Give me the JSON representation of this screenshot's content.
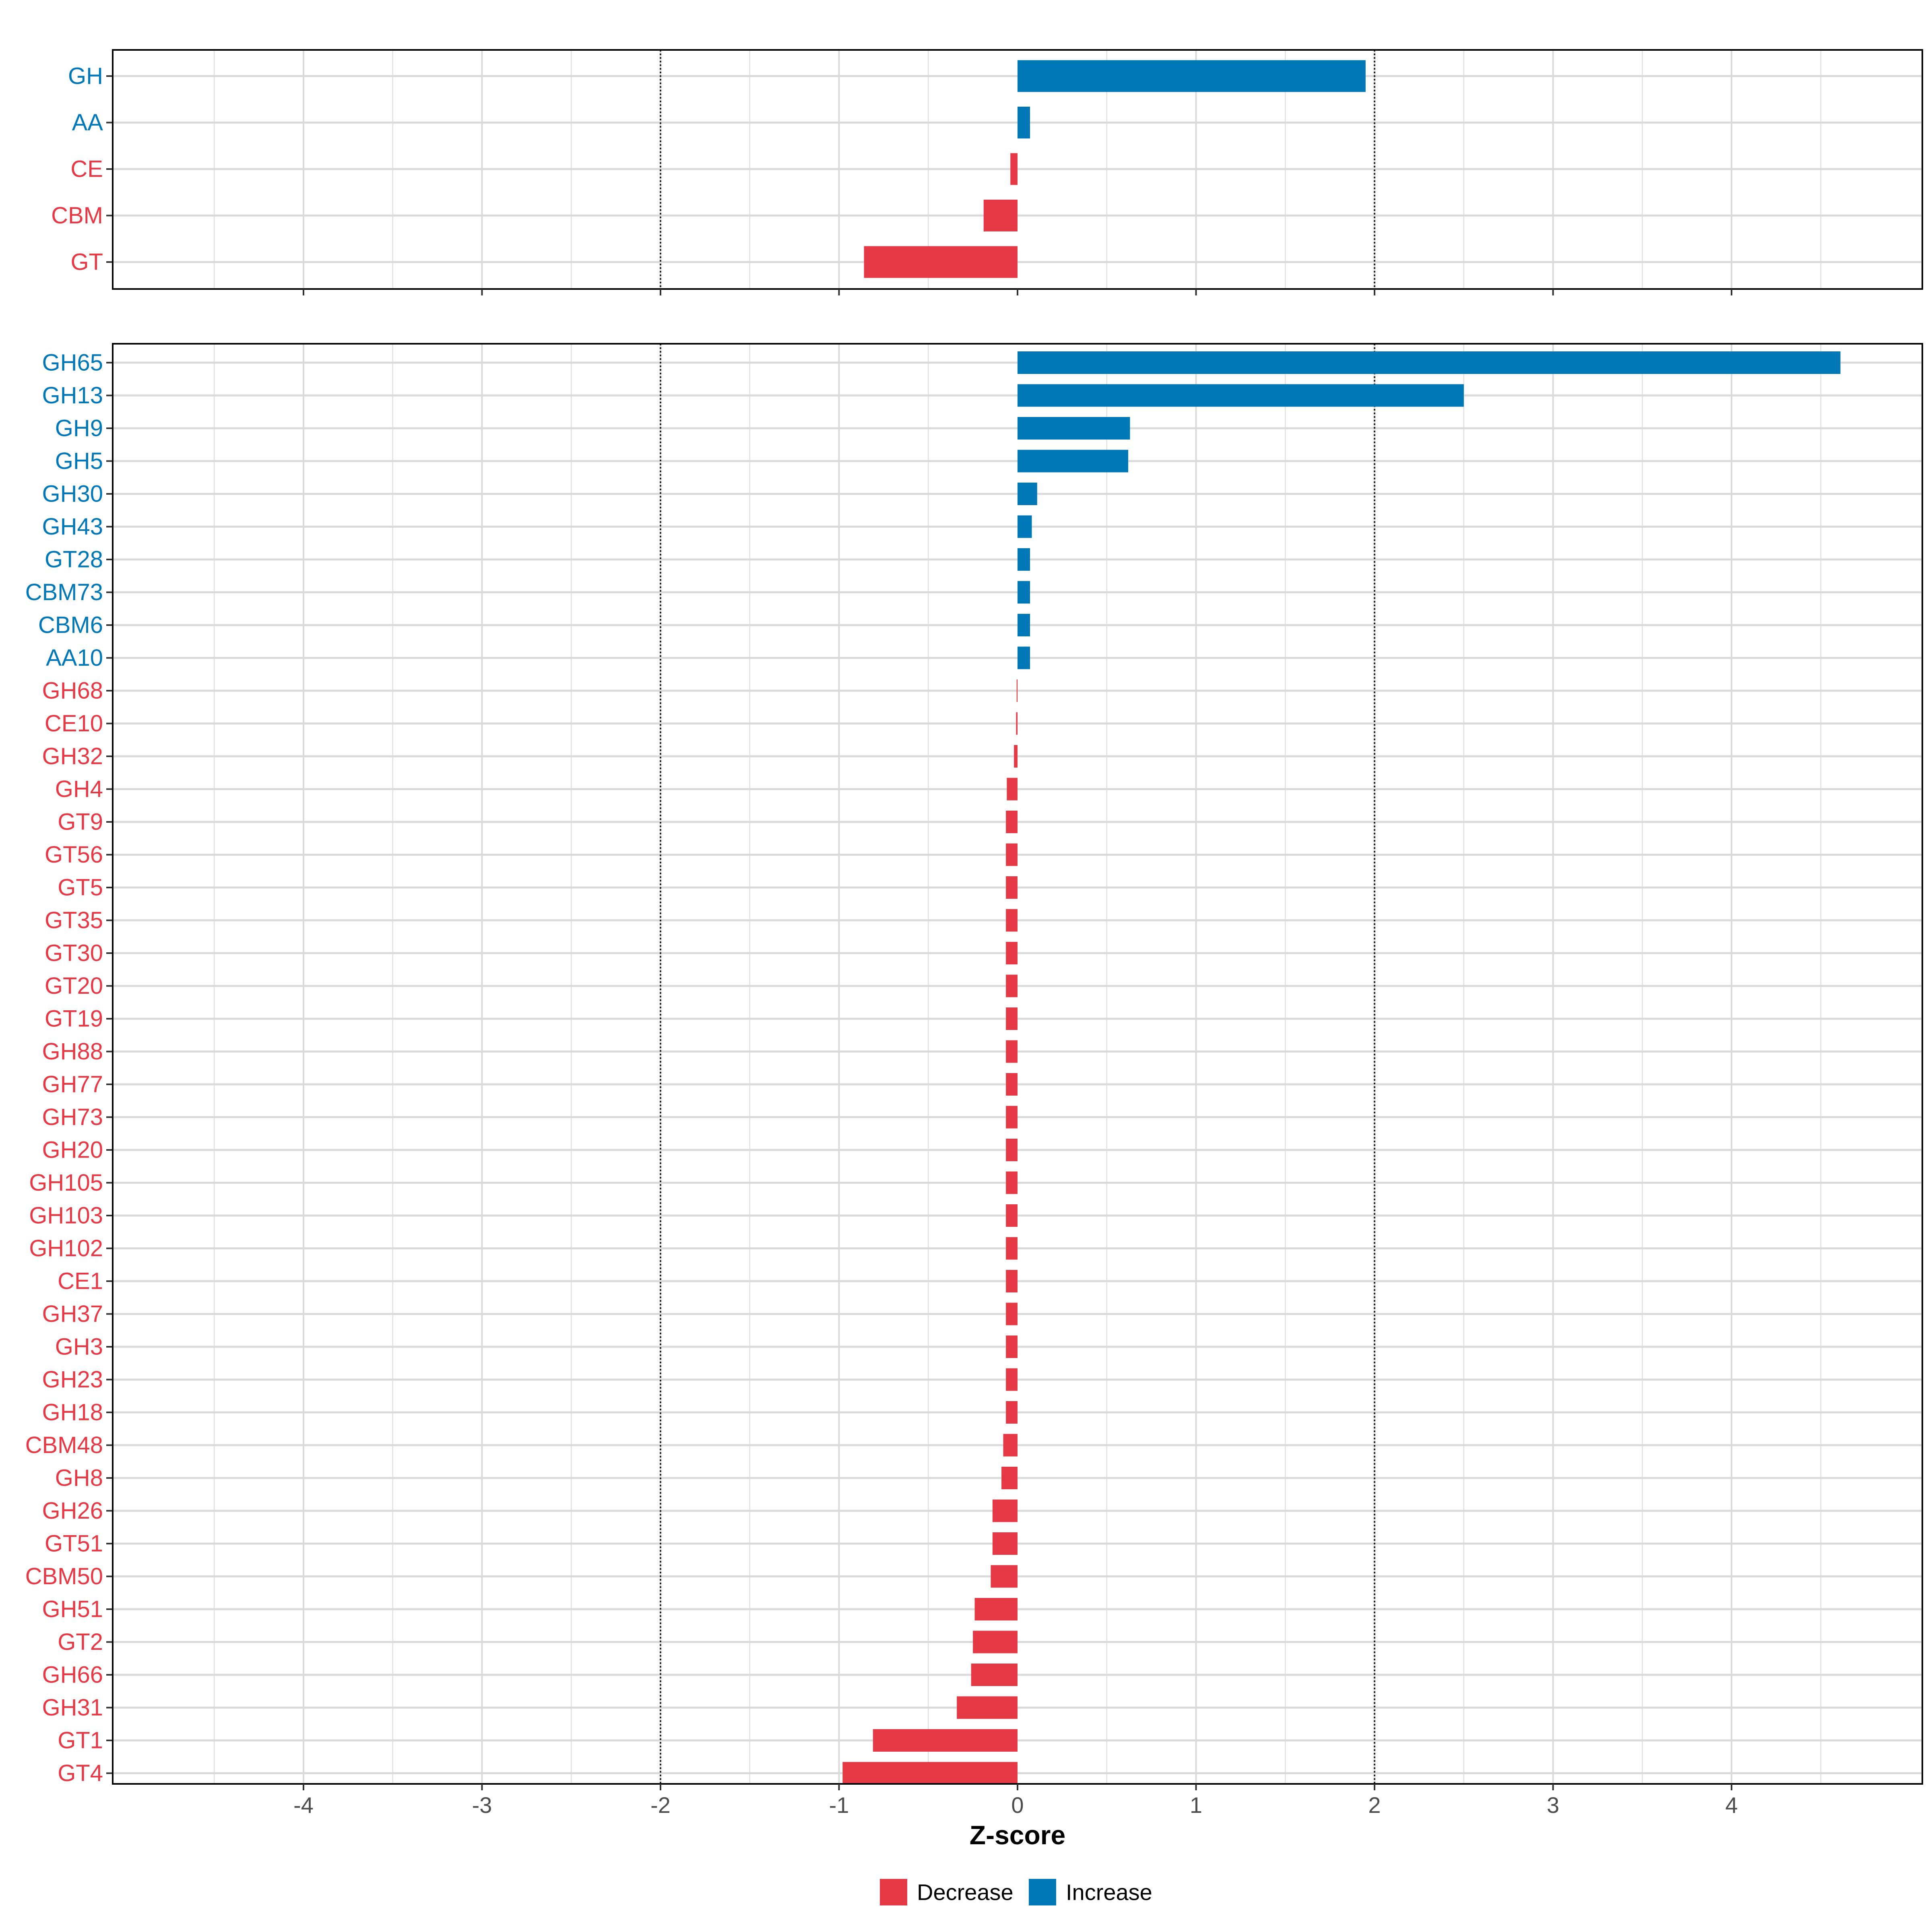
{
  "chart_data": {
    "type": "bar",
    "orientation": "horizontal",
    "xlabel": "Z-score",
    "xlim": [
      -5.0,
      5.0
    ],
    "xticks": [
      -4,
      -3,
      -2,
      -1,
      0,
      1,
      2,
      3,
      4
    ],
    "reference_lines": [
      -2,
      2
    ],
    "colors": {
      "Decrease": "#E63946",
      "Increase": "#0077B6"
    },
    "legend": {
      "position": "bottom",
      "entries": [
        {
          "label": "Decrease",
          "color": "#E63946"
        },
        {
          "label": "Increase",
          "color": "#0077B6"
        }
      ]
    },
    "panels": [
      {
        "name": "class",
        "categories": [
          "GH",
          "AA",
          "CE",
          "CBM",
          "GT"
        ],
        "values": [
          1.95,
          0.07,
          -0.04,
          -0.19,
          -0.86
        ]
      },
      {
        "name": "family",
        "categories": [
          "GH65",
          "GH13",
          "GH9",
          "GH5",
          "GH30",
          "GH43",
          "GT28",
          "CBM73",
          "CBM6",
          "AA10",
          "GH68",
          "CE10",
          "GH32",
          "GH4",
          "GT9",
          "GT56",
          "GT5",
          "GT35",
          "GT30",
          "GT20",
          "GT19",
          "GH88",
          "GH77",
          "GH73",
          "GH20",
          "GH105",
          "GH103",
          "GH102",
          "CE1",
          "GH37",
          "GH3",
          "GH23",
          "GH18",
          "CBM48",
          "GH8",
          "GH26",
          "GT51",
          "CBM50",
          "GH51",
          "GT2",
          "GH66",
          "GH31",
          "GT1",
          "GT4"
        ],
        "values": [
          4.61,
          2.5,
          0.63,
          0.62,
          0.11,
          0.08,
          0.07,
          0.07,
          0.07,
          0.07,
          -0.005,
          -0.008,
          -0.02,
          -0.06,
          -0.065,
          -0.065,
          -0.065,
          -0.065,
          -0.065,
          -0.065,
          -0.065,
          -0.065,
          -0.065,
          -0.065,
          -0.065,
          -0.065,
          -0.065,
          -0.065,
          -0.065,
          -0.065,
          -0.065,
          -0.065,
          -0.065,
          -0.08,
          -0.09,
          -0.14,
          -0.14,
          -0.15,
          -0.24,
          -0.25,
          -0.26,
          -0.34,
          -0.81,
          -0.98
        ]
      }
    ]
  }
}
